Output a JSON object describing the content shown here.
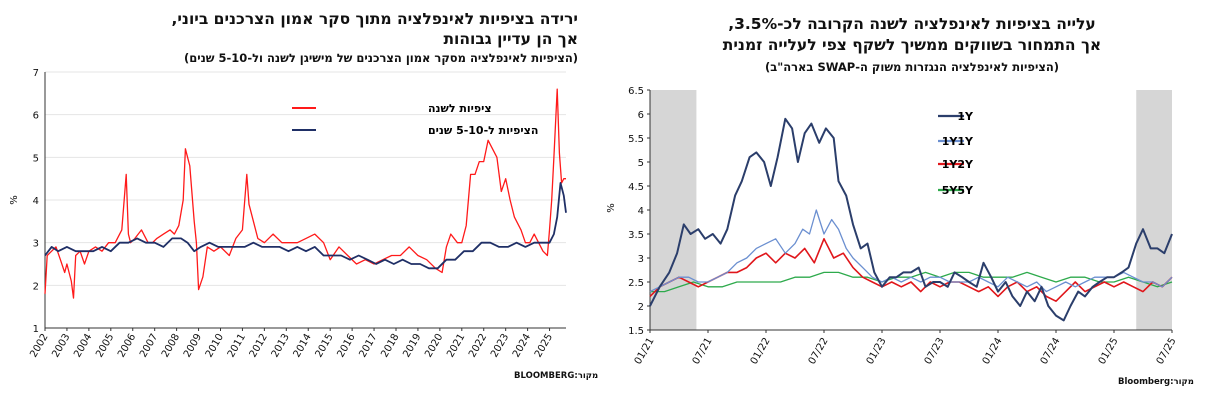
{
  "left": {
    "title_line1": "ירידה בציפיות לאינפלציה מתוך סקר אמון הצרכנים ביוני,",
    "title_line2": "אך הן עדיין גבוהות",
    "subtitle": "(הציפיות לאינפלציה מסקר אמון הצרכנים של מישיגן לשנה ול-5-10 שנים)",
    "source": "מקור:BLOOMBERG",
    "ylabel": "%",
    "colors": {
      "series1": "#ff1a1a",
      "series2": "#1f2f66",
      "grid": "#e5e5e5"
    },
    "chart_data": {
      "type": "line",
      "ylim": [
        1,
        7
      ],
      "yticks": [
        "1",
        "2",
        "3",
        "4",
        "5",
        "6",
        "7"
      ],
      "xlim": [
        2002.0,
        2025.75
      ],
      "xticks": [
        "2002",
        "2003",
        "2004",
        "2005",
        "2006",
        "2007",
        "2008",
        "2009",
        "2010",
        "2011",
        "2012",
        "2013",
        "2014",
        "2015",
        "2016",
        "2017",
        "2018",
        "2019",
        "2020",
        "2021",
        "2022",
        "2023",
        "2024",
        "2025"
      ],
      "grid": "horizontal",
      "legend": "top-center",
      "series": [
        {
          "name": "ציפיות לשנה",
          "x": [
            2002.0,
            2002.1,
            2002.3,
            2002.5,
            2002.7,
            2002.9,
            2003.0,
            2003.2,
            2003.3,
            2003.4,
            2003.6,
            2003.8,
            2004.0,
            2004.3,
            2004.6,
            2004.9,
            2005.2,
            2005.5,
            2005.7,
            2005.8,
            2005.9,
            2006.1,
            2006.4,
            2006.7,
            2006.9,
            2007.1,
            2007.4,
            2007.7,
            2007.9,
            2008.1,
            2008.3,
            2008.4,
            2008.6,
            2008.8,
            2008.9,
            2009.0,
            2009.2,
            2009.4,
            2009.7,
            2010.0,
            2010.4,
            2010.7,
            2011.0,
            2011.2,
            2011.3,
            2011.5,
            2011.7,
            2012.0,
            2012.4,
            2012.8,
            2013.1,
            2013.5,
            2013.9,
            2014.3,
            2014.7,
            2015.0,
            2015.4,
            2015.8,
            2016.2,
            2016.6,
            2017.0,
            2017.4,
            2017.8,
            2018.2,
            2018.6,
            2019.0,
            2019.4,
            2019.8,
            2020.1,
            2020.3,
            2020.5,
            2020.8,
            2021.0,
            2021.2,
            2021.4,
            2021.6,
            2021.8,
            2022.0,
            2022.2,
            2022.4,
            2022.6,
            2022.8,
            2023.0,
            2023.2,
            2023.4,
            2023.7,
            2023.9,
            2024.1,
            2024.3,
            2024.5,
            2024.7,
            2024.9,
            2025.0,
            2025.1,
            2025.2,
            2025.35,
            2025.45,
            2025.55,
            2025.65,
            2025.75
          ],
          "y": [
            1.8,
            2.7,
            2.8,
            2.9,
            2.6,
            2.3,
            2.5,
            2.1,
            1.7,
            2.7,
            2.8,
            2.5,
            2.8,
            2.9,
            2.8,
            3.0,
            3.0,
            3.3,
            4.6,
            3.2,
            3.0,
            3.1,
            3.3,
            3.0,
            3.0,
            3.1,
            3.2,
            3.3,
            3.2,
            3.4,
            4.0,
            5.2,
            4.8,
            3.5,
            3.0,
            1.9,
            2.2,
            2.9,
            2.8,
            2.9,
            2.7,
            3.1,
            3.3,
            4.6,
            3.9,
            3.5,
            3.1,
            3.0,
            3.2,
            3.0,
            3.0,
            3.0,
            3.1,
            3.2,
            3.0,
            2.6,
            2.9,
            2.7,
            2.5,
            2.6,
            2.5,
            2.6,
            2.7,
            2.7,
            2.9,
            2.7,
            2.6,
            2.4,
            2.3,
            2.9,
            3.2,
            3.0,
            3.0,
            3.4,
            4.6,
            4.6,
            4.9,
            4.9,
            5.4,
            5.2,
            5.0,
            4.2,
            4.5,
            4.0,
            3.6,
            3.3,
            3.0,
            3.0,
            3.2,
            3.0,
            2.8,
            2.7,
            3.3,
            4.0,
            5.0,
            6.6,
            5.1,
            4.4,
            4.5,
            4.5
          ]
        },
        {
          "name": "הציפיות ל-5-10 שנים",
          "x": [
            2002.0,
            2002.3,
            2002.6,
            2003.0,
            2003.4,
            2003.8,
            2004.2,
            2004.6,
            2005.0,
            2005.4,
            2005.8,
            2006.2,
            2006.6,
            2007.0,
            2007.4,
            2007.8,
            2008.2,
            2008.5,
            2008.8,
            2009.1,
            2009.5,
            2009.9,
            2010.3,
            2010.7,
            2011.1,
            2011.5,
            2011.9,
            2012.3,
            2012.7,
            2013.1,
            2013.5,
            2013.9,
            2014.3,
            2014.7,
            2015.1,
            2015.5,
            2015.9,
            2016.3,
            2016.7,
            2017.1,
            2017.5,
            2017.9,
            2018.3,
            2018.7,
            2019.1,
            2019.5,
            2019.9,
            2020.3,
            2020.7,
            2021.1,
            2021.5,
            2021.9,
            2022.3,
            2022.7,
            2023.1,
            2023.5,
            2023.9,
            2024.3,
            2024.7,
            2025.0,
            2025.2,
            2025.35,
            2025.5,
            2025.65,
            2025.75
          ],
          "y": [
            2.7,
            2.9,
            2.8,
            2.9,
            2.8,
            2.8,
            2.8,
            2.9,
            2.8,
            3.0,
            3.0,
            3.1,
            3.0,
            3.0,
            2.9,
            3.1,
            3.1,
            3.0,
            2.8,
            2.9,
            3.0,
            2.9,
            2.9,
            2.9,
            2.9,
            3.0,
            2.9,
            2.9,
            2.9,
            2.8,
            2.9,
            2.8,
            2.9,
            2.7,
            2.7,
            2.7,
            2.6,
            2.7,
            2.6,
            2.5,
            2.6,
            2.5,
            2.6,
            2.5,
            2.5,
            2.4,
            2.4,
            2.6,
            2.6,
            2.8,
            2.8,
            3.0,
            3.0,
            2.9,
            2.9,
            3.0,
            2.9,
            3.0,
            3.0,
            3.0,
            3.2,
            3.6,
            4.4,
            4.1,
            3.7
          ]
        }
      ]
    }
  },
  "right": {
    "title_line1": "עלייה בציפיות לאינפלציה לשנה הקרובה לכ-3.5%,",
    "title_line2": "אך התמחור בשווקים ממשיך לשקף צפי לעלייה זמנית",
    "subtitle": "(הציפיות לאינפלציה הנגזרות משוק ה-SWAP בארה\"ב)",
    "source": "מקור:Bloomberg",
    "ylabel": "%",
    "colors": {
      "1Y": "#2b3e6b",
      "1Y1Y": "#6b8fd0",
      "1Y2Y": "#e0161b",
      "5Y5Y": "#2eaa4c",
      "shade": "#d6d6d6"
    },
    "chart_data": {
      "type": "line",
      "ylim": [
        1.5,
        6.5
      ],
      "yticks": [
        "1.5",
        "2",
        "2.5",
        "3",
        "3.5",
        "4",
        "4.5",
        "5",
        "5.5",
        "6",
        "6.5"
      ],
      "xlim": [
        0,
        54
      ],
      "xticks": [
        {
          "v": 0,
          "t": "01/21"
        },
        {
          "v": 6,
          "t": "07/21"
        },
        {
          "v": 12,
          "t": "01/22"
        },
        {
          "v": 18,
          "t": "07/22"
        },
        {
          "v": 24,
          "t": "01/23"
        },
        {
          "v": 30,
          "t": "07/23"
        },
        {
          "v": 36,
          "t": "01/24"
        },
        {
          "v": 42,
          "t": "07/24"
        },
        {
          "v": 48,
          "t": "01/25"
        },
        {
          "v": 54,
          "t": "07/25"
        }
      ],
      "shaded": [
        [
          0,
          4.8
        ],
        [
          50.3,
          54
        ]
      ],
      "legend": "top-center",
      "series": [
        {
          "name": "1Y",
          "x": [
            0,
            1,
            2,
            2.8,
            3.5,
            4.2,
            5,
            5.7,
            6.5,
            7.3,
            8,
            8.8,
            9.5,
            10.3,
            11,
            11.8,
            12.5,
            13.2,
            14,
            14.7,
            15.3,
            16,
            16.7,
            17.5,
            18.2,
            19,
            19.5,
            20.3,
            21,
            21.8,
            22.5,
            23.2,
            24,
            24.8,
            25.5,
            26.2,
            27,
            27.8,
            28.5,
            29.3,
            30,
            30.8,
            31.5,
            32.3,
            33,
            33.8,
            34.5,
            35.3,
            36,
            36.8,
            37.5,
            38.3,
            39,
            39.8,
            40.5,
            41.2,
            42,
            42.8,
            43.5,
            44.3,
            45,
            45.8,
            46.5,
            47.3,
            48,
            48.8,
            49.5,
            50.3,
            51,
            51.8,
            52.5,
            53.2,
            54
          ],
          "y": [
            2.0,
            2.4,
            2.7,
            3.1,
            3.7,
            3.5,
            3.6,
            3.4,
            3.5,
            3.3,
            3.6,
            4.3,
            4.6,
            5.1,
            5.2,
            5.0,
            4.5,
            5.1,
            5.9,
            5.7,
            5.0,
            5.6,
            5.8,
            5.4,
            5.7,
            5.5,
            4.6,
            4.3,
            3.7,
            3.2,
            3.3,
            2.7,
            2.4,
            2.6,
            2.6,
            2.7,
            2.7,
            2.8,
            2.4,
            2.5,
            2.5,
            2.4,
            2.7,
            2.6,
            2.5,
            2.4,
            2.9,
            2.6,
            2.3,
            2.5,
            2.2,
            2.0,
            2.3,
            2.1,
            2.4,
            2.0,
            1.8,
            1.7,
            2.0,
            2.3,
            2.2,
            2.4,
            2.5,
            2.6,
            2.6,
            2.7,
            2.8,
            3.3,
            3.6,
            3.2,
            3.2,
            3.1,
            3.5
          ]
        },
        {
          "name": "1Y1Y",
          "x": [
            0,
            1,
            2,
            3,
            4,
            5,
            6,
            7,
            8,
            9,
            10,
            11,
            12,
            13,
            14,
            15,
            15.8,
            16.5,
            17.2,
            18,
            18.8,
            19.5,
            20.3,
            21,
            22,
            23,
            24,
            25,
            26,
            27,
            28,
            29,
            30,
            31,
            32,
            33,
            34,
            35,
            36,
            37,
            38,
            39,
            40,
            41,
            42,
            43,
            44,
            45,
            46,
            47,
            48,
            49,
            50,
            51,
            52,
            53,
            54
          ],
          "y": [
            2.3,
            2.4,
            2.5,
            2.6,
            2.6,
            2.5,
            2.5,
            2.6,
            2.7,
            2.9,
            3.0,
            3.2,
            3.3,
            3.4,
            3.1,
            3.3,
            3.6,
            3.5,
            4.0,
            3.5,
            3.8,
            3.6,
            3.2,
            3.0,
            2.8,
            2.6,
            2.5,
            2.6,
            2.5,
            2.6,
            2.5,
            2.6,
            2.6,
            2.5,
            2.5,
            2.5,
            2.6,
            2.5,
            2.4,
            2.6,
            2.5,
            2.4,
            2.5,
            2.3,
            2.4,
            2.5,
            2.4,
            2.5,
            2.6,
            2.6,
            2.6,
            2.7,
            2.6,
            2.5,
            2.5,
            2.4,
            2.6
          ]
        },
        {
          "name": "1Y2Y",
          "x": [
            0,
            1,
            2,
            3,
            4,
            5,
            6,
            7,
            8,
            9,
            10,
            11,
            12,
            13,
            14,
            15,
            16,
            17,
            18,
            19,
            20,
            21,
            22,
            23,
            24,
            25,
            26,
            27,
            28,
            29,
            30,
            31,
            32,
            33,
            34,
            35,
            36,
            37,
            38,
            39,
            40,
            41,
            42,
            43,
            44,
            45,
            46,
            47,
            48,
            49,
            50,
            51,
            52,
            53,
            54
          ],
          "y": [
            2.2,
            2.4,
            2.5,
            2.6,
            2.5,
            2.4,
            2.5,
            2.6,
            2.7,
            2.7,
            2.8,
            3.0,
            3.1,
            2.9,
            3.1,
            3.0,
            3.2,
            2.9,
            3.4,
            3.0,
            3.1,
            2.8,
            2.6,
            2.5,
            2.4,
            2.5,
            2.4,
            2.5,
            2.3,
            2.5,
            2.4,
            2.5,
            2.5,
            2.4,
            2.3,
            2.4,
            2.2,
            2.4,
            2.5,
            2.3,
            2.4,
            2.2,
            2.1,
            2.3,
            2.5,
            2.3,
            2.4,
            2.5,
            2.4,
            2.5,
            2.4,
            2.3,
            2.5,
            2.4,
            2.6
          ]
        },
        {
          "name": "5Y5Y",
          "x": [
            0,
            1.5,
            3,
            4.5,
            6,
            7.5,
            9,
            10.5,
            12,
            13.5,
            15,
            16.5,
            18,
            19.5,
            21,
            22.5,
            24,
            25.5,
            27,
            28.5,
            30,
            31.5,
            33,
            34.5,
            36,
            37.5,
            39,
            40.5,
            42,
            43.5,
            45,
            46.5,
            48,
            49.5,
            51,
            52.5,
            54
          ],
          "y": [
            2.3,
            2.3,
            2.4,
            2.5,
            2.4,
            2.4,
            2.5,
            2.5,
            2.5,
            2.5,
            2.6,
            2.6,
            2.7,
            2.7,
            2.6,
            2.6,
            2.5,
            2.6,
            2.6,
            2.7,
            2.6,
            2.7,
            2.7,
            2.6,
            2.6,
            2.6,
            2.7,
            2.6,
            2.5,
            2.6,
            2.6,
            2.5,
            2.5,
            2.6,
            2.5,
            2.4,
            2.5
          ]
        }
      ]
    }
  }
}
